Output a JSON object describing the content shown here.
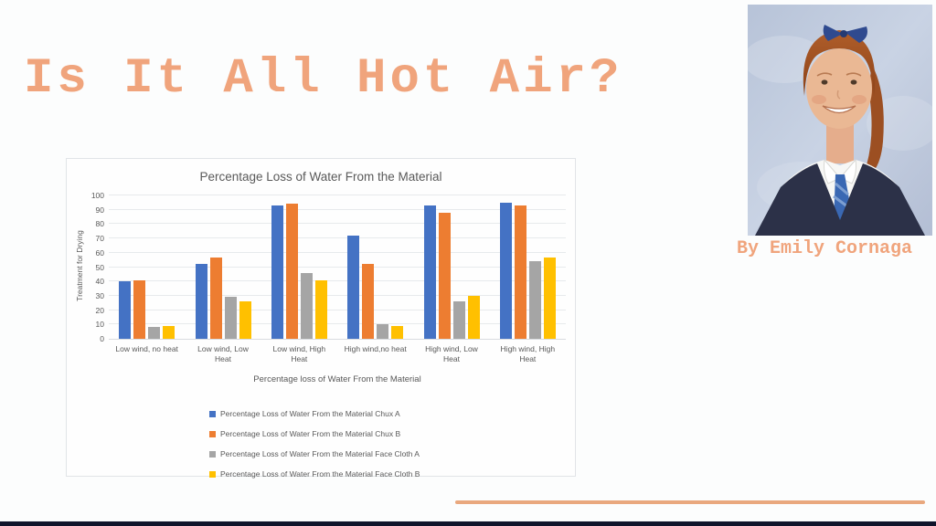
{
  "slide": {
    "title": "Is It All Hot Air?",
    "byline": "By Emily Cornaga",
    "accent_color": "#f0a47c",
    "divider_color": "#e9a87e",
    "bottom_bar_color": "#10142b",
    "photo_description": "School portrait of a girl with red hair, blue hair bow, white shirt, blue tie and navy pinafore"
  },
  "chart_data": {
    "type": "bar",
    "title": "Percentage Loss of Water From the Material",
    "xlabel": "Percentage loss of Water From the Material",
    "ylabel": "Treatment for Drying",
    "ylim": [
      0,
      100
    ],
    "ytick_step": 10,
    "grid": true,
    "legend_position": "bottom-left",
    "categories": [
      "Low wind, no heat",
      "Low wind, Low\nHeat",
      "Low wind, High\nHeat",
      "High wind,no heat",
      "High wind, Low\nHeat",
      "High wind, High\nHeat"
    ],
    "series": [
      {
        "name": "Percentage Loss of Water From the Material Chux A",
        "color": "#4472C4",
        "values": [
          40,
          52,
          93,
          72,
          93,
          95
        ]
      },
      {
        "name": "Percentage Loss of Water From the Material Chux B",
        "color": "#ED7D31",
        "values": [
          41,
          57,
          94,
          52,
          88,
          93
        ]
      },
      {
        "name": "Percentage Loss of Water From the Material Face Cloth A",
        "color": "#A5A5A5",
        "values": [
          8,
          29,
          46,
          10,
          26,
          54
        ]
      },
      {
        "name": "Percentage Loss of Water From the Material Face Cloth B",
        "color": "#FFC000",
        "values": [
          9,
          26,
          41,
          9,
          30,
          57
        ]
      }
    ]
  }
}
